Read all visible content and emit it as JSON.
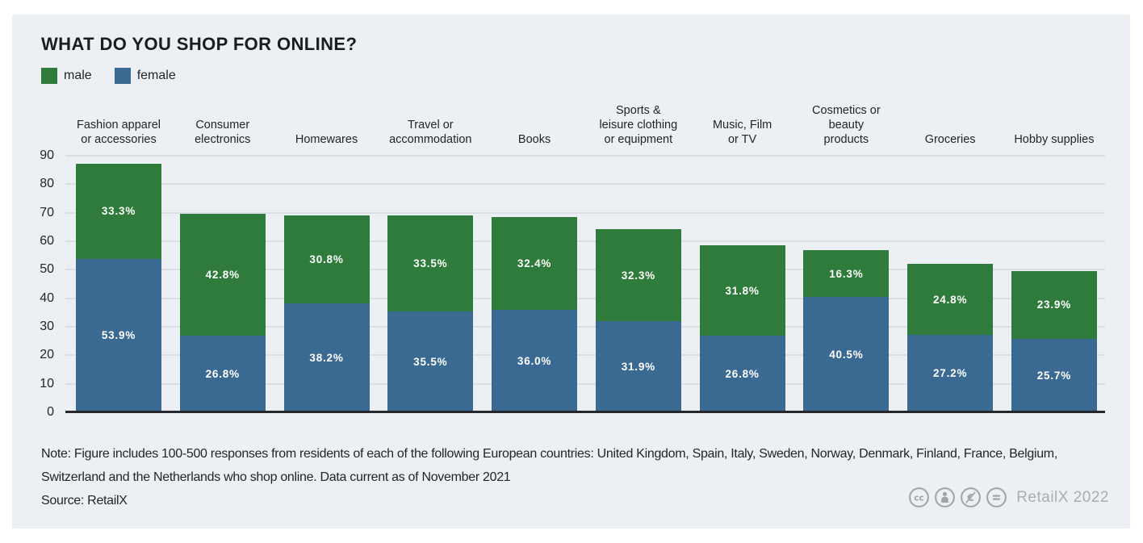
{
  "title": "WHAT DO YOU SHOP FOR ONLINE?",
  "chart_data": {
    "type": "bar",
    "stacked": true,
    "title": "WHAT DO YOU SHOP FOR ONLINE?",
    "categories": [
      "Fashion apparel\nor accessories",
      "Consumer\nelectronics",
      "Homewares",
      "Travel or\naccommodation",
      "Books",
      "Sports &\nleisure clothing\nor equipment",
      "Music, Film\nor TV",
      "Cosmetics or\nbeauty\nproducts",
      "Groceries",
      "Hobby supplies"
    ],
    "series": [
      {
        "name": "male",
        "color": "#2F7B3B",
        "values": [
          33.3,
          42.8,
          30.8,
          33.5,
          32.4,
          32.3,
          31.8,
          16.3,
          24.8,
          23.9
        ]
      },
      {
        "name": "female",
        "color": "#3A6A92",
        "values": [
          53.9,
          26.8,
          38.2,
          35.5,
          36.0,
          31.9,
          26.8,
          40.5,
          27.2,
          25.7
        ]
      }
    ],
    "stack_order_top_to_bottom": [
      "male",
      "female"
    ],
    "xlabel": "",
    "ylabel": "",
    "ylim": [
      0,
      90
    ],
    "yticks": [
      90,
      80,
      70,
      60,
      50,
      40,
      30,
      20,
      10,
      0
    ],
    "grid": true,
    "value_suffix": "%",
    "legend_position": "top-left"
  },
  "note": {
    "text": "Note: Figure includes 100-500 responses from residents of each of the following European countries: United Kingdom, Spain, Italy, Sweden, Norway, Denmark, Finland, France, Belgium, Switzerland and the Netherlands who shop online. Data current as of November 2021",
    "source": "Source: RetailX"
  },
  "footer": {
    "credit": "RetailX 2022",
    "license_icons": [
      "cc",
      "attribution",
      "non-commercial-euro",
      "no-derivatives"
    ]
  }
}
